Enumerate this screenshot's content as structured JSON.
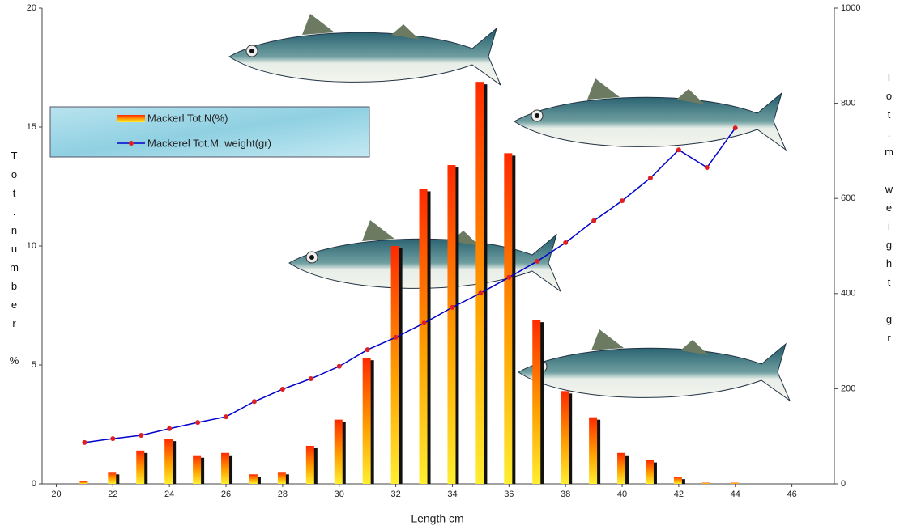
{
  "chart_data": {
    "type": "bar_line",
    "x_label": "Length cm",
    "y_label": "Tot.number %",
    "y2_label": "Tot.m weight gr",
    "x": [
      21,
      22,
      23,
      24,
      25,
      26,
      27,
      28,
      29,
      30,
      31,
      32,
      33,
      34,
      35,
      36,
      37,
      38,
      39,
      40,
      41,
      42,
      43,
      44
    ],
    "series": [
      {
        "name": "Mackerl Tot.N(%)",
        "color": "#ff3300",
        "values": [
          0.1,
          0.5,
          1.4,
          1.9,
          1.2,
          1.3,
          0.4,
          0.5,
          1.6,
          2.7,
          5.3,
          10.0,
          12.4,
          13.4,
          16.9,
          13.9,
          6.9,
          3.9,
          2.8,
          1.3,
          1.0,
          0.3,
          0.05,
          0.05
        ]
      },
      {
        "name": "Mackerel Tot.M. weight(gr)",
        "color": "#0000cc",
        "axis": "y2",
        "values": [
          87,
          95,
          102,
          116,
          129,
          141,
          173,
          199,
          221,
          247,
          282,
          308,
          338,
          371,
          401,
          434,
          468,
          507,
          553,
          595,
          643,
          702,
          665,
          748
        ]
      }
    ],
    "xlim": [
      19.5,
      47.5
    ],
    "xticks": [
      20,
      22,
      24,
      26,
      28,
      30,
      32,
      34,
      36,
      38,
      40,
      42,
      44,
      46
    ],
    "ylim": [
      0,
      20
    ],
    "yticks": [
      0,
      5,
      10,
      15,
      20
    ],
    "y2lim": [
      0,
      1000
    ],
    "y2ticks": [
      0,
      200,
      400,
      600,
      800,
      1000
    ],
    "grid": false,
    "legend": "upper left"
  }
}
